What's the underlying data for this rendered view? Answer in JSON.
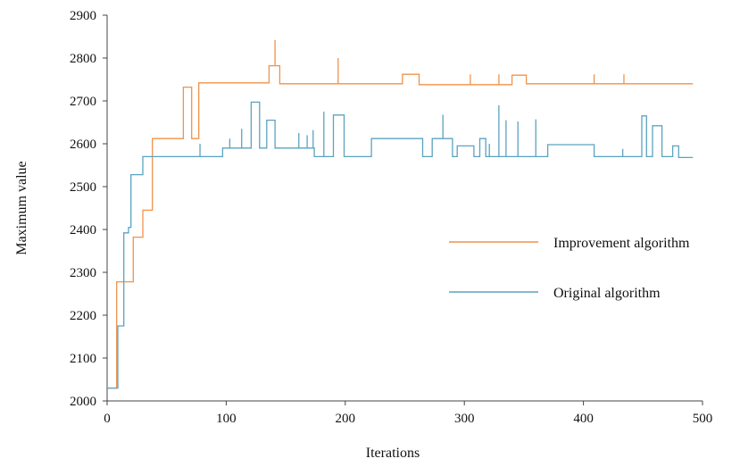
{
  "chart_data": {
    "type": "line",
    "xlabel": "Iterations",
    "ylabel": "Maximum value",
    "xlim": [
      0,
      500
    ],
    "ylim": [
      2000,
      2900
    ],
    "xticks": [
      "0",
      "100",
      "200",
      "300",
      "400",
      "500"
    ],
    "yticks": [
      "2000",
      "2100",
      "2200",
      "2300",
      "2400",
      "2500",
      "2600",
      "2700",
      "2800",
      "2900"
    ],
    "grid": false,
    "legend_position": "right",
    "series": [
      {
        "name": "Improvement algorithm",
        "color": "#F0924A",
        "points": [
          [
            0,
            2030
          ],
          [
            8,
            2030
          ],
          [
            8,
            2278
          ],
          [
            22,
            2278
          ],
          [
            22,
            2382
          ],
          [
            30,
            2382
          ],
          [
            30,
            2445
          ],
          [
            38,
            2445
          ],
          [
            38,
            2612
          ],
          [
            64,
            2612
          ],
          [
            64,
            2732
          ],
          [
            71,
            2732
          ],
          [
            71,
            2612
          ],
          [
            77,
            2612
          ],
          [
            77,
            2742
          ],
          [
            136,
            2742
          ],
          [
            136,
            2782
          ],
          [
            145,
            2782
          ],
          [
            145,
            2740
          ],
          [
            248,
            2740
          ],
          [
            248,
            2762
          ],
          [
            262,
            2762
          ],
          [
            262,
            2738
          ],
          [
            340,
            2738
          ],
          [
            340,
            2760
          ],
          [
            352,
            2760
          ],
          [
            352,
            2740
          ],
          [
            492,
            2740
          ]
        ],
        "spikes": [
          [
            141,
            2842
          ],
          [
            194,
            2800
          ],
          [
            305,
            2762
          ],
          [
            329,
            2762
          ],
          [
            409,
            2762
          ],
          [
            434,
            2762
          ]
        ]
      },
      {
        "name": "Original algorithm",
        "color": "#5BA3C0",
        "points": [
          [
            0,
            2030
          ],
          [
            9,
            2030
          ],
          [
            9,
            2175
          ],
          [
            14,
            2175
          ],
          [
            14,
            2392
          ],
          [
            18,
            2392
          ],
          [
            18,
            2405
          ],
          [
            20,
            2405
          ],
          [
            20,
            2528
          ],
          [
            30,
            2528
          ],
          [
            30,
            2570
          ],
          [
            97,
            2570
          ],
          [
            97,
            2590
          ],
          [
            121,
            2590
          ],
          [
            121,
            2697
          ],
          [
            128,
            2697
          ],
          [
            128,
            2590
          ],
          [
            134,
            2590
          ],
          [
            134,
            2655
          ],
          [
            141,
            2655
          ],
          [
            141,
            2590
          ],
          [
            174,
            2590
          ],
          [
            174,
            2570
          ],
          [
            190,
            2570
          ],
          [
            190,
            2667
          ],
          [
            199,
            2667
          ],
          [
            199,
            2570
          ],
          [
            222,
            2570
          ],
          [
            222,
            2612
          ],
          [
            265,
            2612
          ],
          [
            265,
            2570
          ],
          [
            273,
            2570
          ],
          [
            273,
            2612
          ],
          [
            290,
            2612
          ],
          [
            290,
            2570
          ],
          [
            294,
            2570
          ],
          [
            294,
            2595
          ],
          [
            308,
            2595
          ],
          [
            308,
            2570
          ],
          [
            313,
            2570
          ],
          [
            313,
            2612
          ],
          [
            318,
            2612
          ],
          [
            318,
            2570
          ],
          [
            370,
            2570
          ],
          [
            370,
            2598
          ],
          [
            409,
            2598
          ],
          [
            409,
            2570
          ],
          [
            449,
            2570
          ],
          [
            449,
            2665
          ],
          [
            453,
            2665
          ],
          [
            453,
            2570
          ],
          [
            458,
            2570
          ],
          [
            458,
            2642
          ],
          [
            466,
            2642
          ],
          [
            466,
            2570
          ],
          [
            475,
            2570
          ],
          [
            475,
            2595
          ],
          [
            480,
            2595
          ],
          [
            480,
            2568
          ],
          [
            492,
            2568
          ]
        ],
        "spikes": [
          [
            78,
            2600
          ],
          [
            103,
            2612
          ],
          [
            113,
            2635
          ],
          [
            161,
            2625
          ],
          [
            168,
            2620
          ],
          [
            173,
            2632
          ],
          [
            182,
            2675
          ],
          [
            282,
            2668
          ],
          [
            321,
            2600
          ],
          [
            329,
            2690
          ],
          [
            335,
            2655
          ],
          [
            345,
            2652
          ],
          [
            360,
            2657
          ],
          [
            433,
            2588
          ]
        ]
      }
    ]
  }
}
